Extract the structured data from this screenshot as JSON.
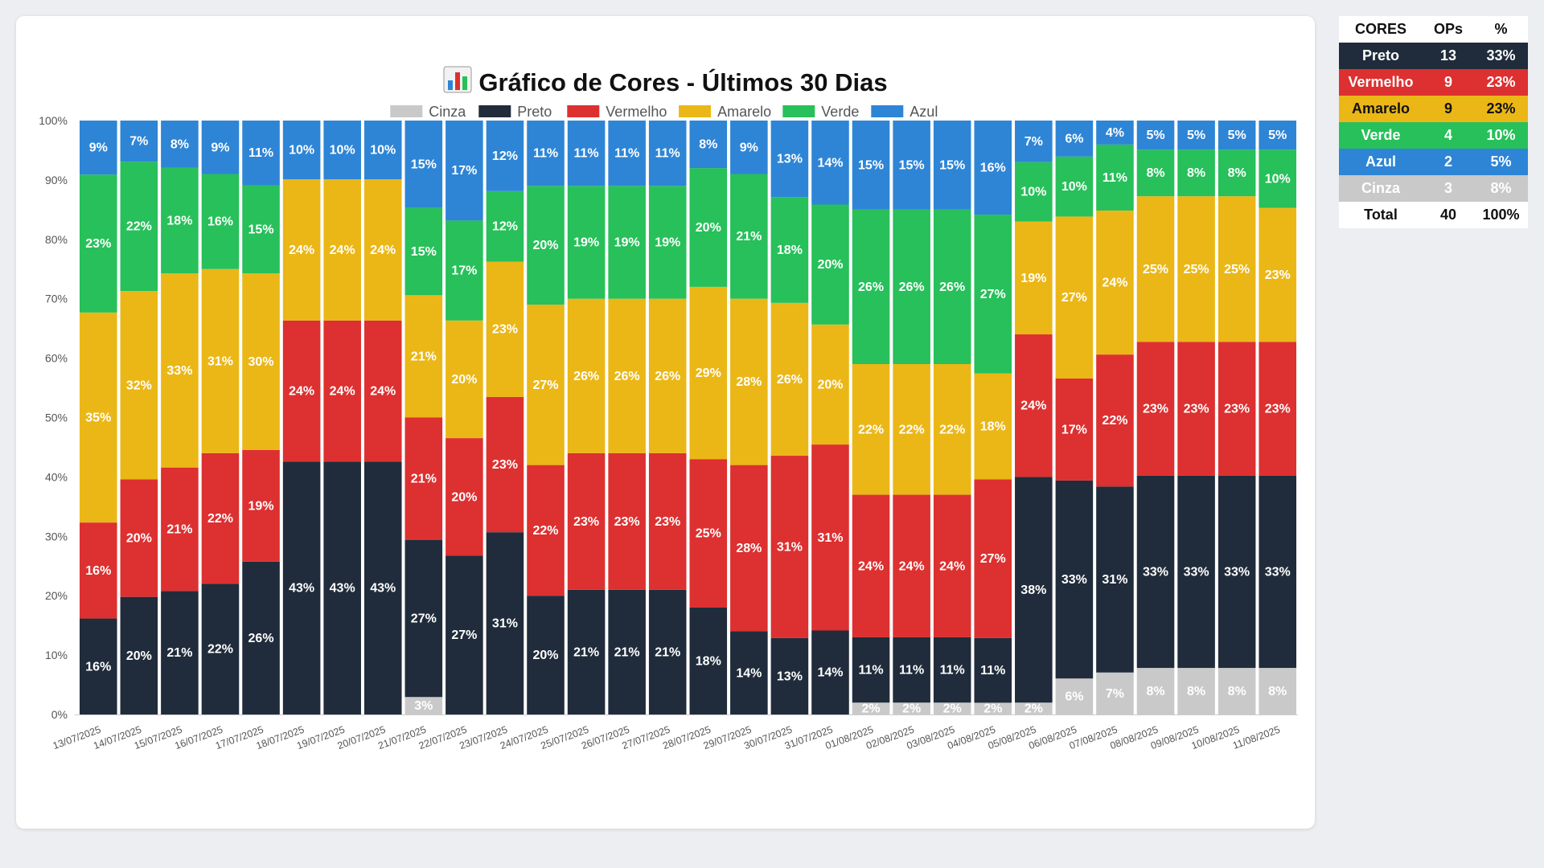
{
  "title": "Gráfico de Cores - Últimos 30 Dias",
  "title_icon": "bar-chart-icon",
  "chart_data": {
    "type": "bar",
    "stacked": true,
    "title": "Gráfico de Cores - Últimos 30 Dias",
    "xlabel": "",
    "ylabel": "",
    "ylim": [
      0,
      100
    ],
    "yticks": [
      "0%",
      "10%",
      "20%",
      "30%",
      "40%",
      "50%",
      "60%",
      "70%",
      "80%",
      "90%",
      "100%"
    ],
    "legend_position": "top-center",
    "categories": [
      "13/07/2025",
      "14/07/2025",
      "15/07/2025",
      "16/07/2025",
      "17/07/2025",
      "18/07/2025",
      "19/07/2025",
      "20/07/2025",
      "21/07/2025",
      "22/07/2025",
      "23/07/2025",
      "24/07/2025",
      "25/07/2025",
      "26/07/2025",
      "27/07/2025",
      "28/07/2025",
      "29/07/2025",
      "30/07/2025",
      "31/07/2025",
      "01/08/2025",
      "02/08/2025",
      "03/08/2025",
      "04/08/2025",
      "05/08/2025",
      "06/08/2025",
      "07/08/2025",
      "08/08/2025",
      "09/08/2025",
      "10/08/2025",
      "11/08/2025"
    ],
    "series": [
      {
        "name": "Cinza",
        "color": "#c9c9c9",
        "values": [
          0,
          0,
          0,
          0,
          0,
          0,
          0,
          0,
          3,
          0,
          0,
          0,
          0,
          0,
          0,
          0,
          0,
          0,
          0,
          2,
          2,
          2,
          2,
          2,
          6,
          7,
          8,
          8,
          8,
          8
        ]
      },
      {
        "name": "Preto",
        "color": "#202c3b",
        "values": [
          16,
          20,
          21,
          22,
          26,
          43,
          43,
          43,
          27,
          27,
          31,
          20,
          21,
          21,
          21,
          18,
          14,
          13,
          14,
          11,
          11,
          11,
          11,
          38,
          33,
          31,
          33,
          33,
          33,
          33
        ]
      },
      {
        "name": "Vermelho",
        "color": "#dd3030",
        "values": [
          16,
          20,
          21,
          22,
          19,
          24,
          24,
          24,
          21,
          20,
          23,
          22,
          23,
          23,
          23,
          25,
          28,
          31,
          31,
          24,
          24,
          24,
          27,
          24,
          17,
          22,
          23,
          23,
          23,
          23
        ]
      },
      {
        "name": "Amarelo",
        "color": "#ebb717",
        "values": [
          35,
          32,
          33,
          31,
          30,
          24,
          24,
          24,
          21,
          20,
          23,
          27,
          26,
          26,
          26,
          29,
          28,
          26,
          20,
          22,
          22,
          22,
          18,
          19,
          27,
          24,
          25,
          25,
          25,
          23
        ]
      },
      {
        "name": "Verde",
        "color": "#27c05a",
        "values": [
          23,
          22,
          18,
          16,
          15,
          0,
          0,
          0,
          15,
          17,
          12,
          20,
          19,
          19,
          19,
          20,
          21,
          18,
          20,
          26,
          26,
          26,
          27,
          10,
          10,
          11,
          8,
          8,
          8,
          10
        ]
      },
      {
        "name": "Azul",
        "color": "#2e85d6",
        "values": [
          9,
          7,
          8,
          9,
          11,
          10,
          10,
          10,
          15,
          17,
          12,
          11,
          11,
          11,
          11,
          8,
          9,
          13,
          14,
          15,
          15,
          15,
          16,
          7,
          6,
          4,
          5,
          5,
          5,
          5
        ]
      }
    ]
  },
  "summary_table": {
    "headers": [
      "CORES",
      "OPs",
      "%"
    ],
    "rows": [
      {
        "name": "Preto",
        "ops": "13",
        "pct": "33%",
        "bg": "#202c3b",
        "fg": "#ffffff"
      },
      {
        "name": "Vermelho",
        "ops": "9",
        "pct": "23%",
        "bg": "#dd3030",
        "fg": "#ffffff"
      },
      {
        "name": "Amarelo",
        "ops": "9",
        "pct": "23%",
        "bg": "#ebb717",
        "fg": "#111111"
      },
      {
        "name": "Verde",
        "ops": "4",
        "pct": "10%",
        "bg": "#27c05a",
        "fg": "#ffffff"
      },
      {
        "name": "Azul",
        "ops": "2",
        "pct": "5%",
        "bg": "#2e85d6",
        "fg": "#ffffff"
      },
      {
        "name": "Cinza",
        "ops": "3",
        "pct": "8%",
        "bg": "#c9c9c9",
        "fg": "#ffffff"
      }
    ],
    "total": {
      "name": "Total",
      "ops": "40",
      "pct": "100%"
    }
  }
}
